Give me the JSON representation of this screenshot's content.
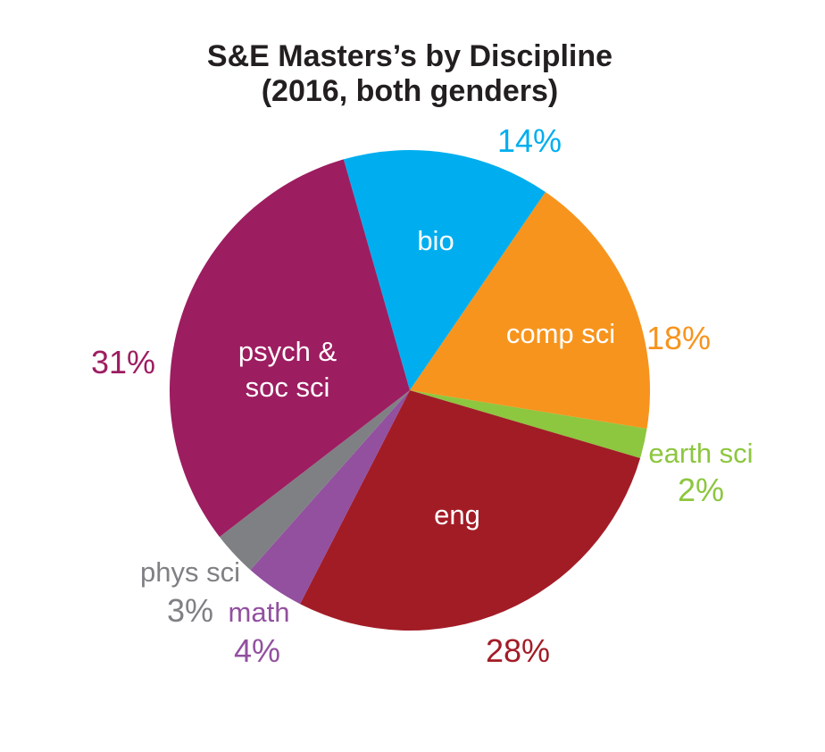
{
  "chart_data": {
    "type": "pie",
    "title": "S&E Masters’s by Discipline",
    "subtitle": "(2016, both genders)",
    "slices": [
      {
        "label": "bio",
        "value": 14,
        "pct_label": "14%",
        "color": "#00AEEF",
        "label_inside": true
      },
      {
        "label": "comp sci",
        "value": 18,
        "pct_label": "18%",
        "color": "#F7941D",
        "label_inside": true
      },
      {
        "label": "earth sci",
        "value": 2,
        "pct_label": "2%",
        "color": "#8DC63F",
        "label_inside": false
      },
      {
        "label": "eng",
        "value": 28,
        "pct_label": "28%",
        "color": "#A21C26",
        "label_inside": true
      },
      {
        "label": "math",
        "value": 4,
        "pct_label": "4%",
        "color": "#92509F",
        "label_inside": false
      },
      {
        "label": "phys sci",
        "value": 3,
        "pct_label": "3%",
        "color": "#7F8084",
        "label_inside": false
      },
      {
        "label": "psych & soc sci",
        "label_lines": [
          "psych &",
          "soc sci"
        ],
        "value": 31,
        "pct_label": "31%",
        "color": "#9D1D61",
        "label_inside": true
      }
    ],
    "start_angle_deg": -16,
    "direction": "clockwise",
    "legend": "none"
  }
}
